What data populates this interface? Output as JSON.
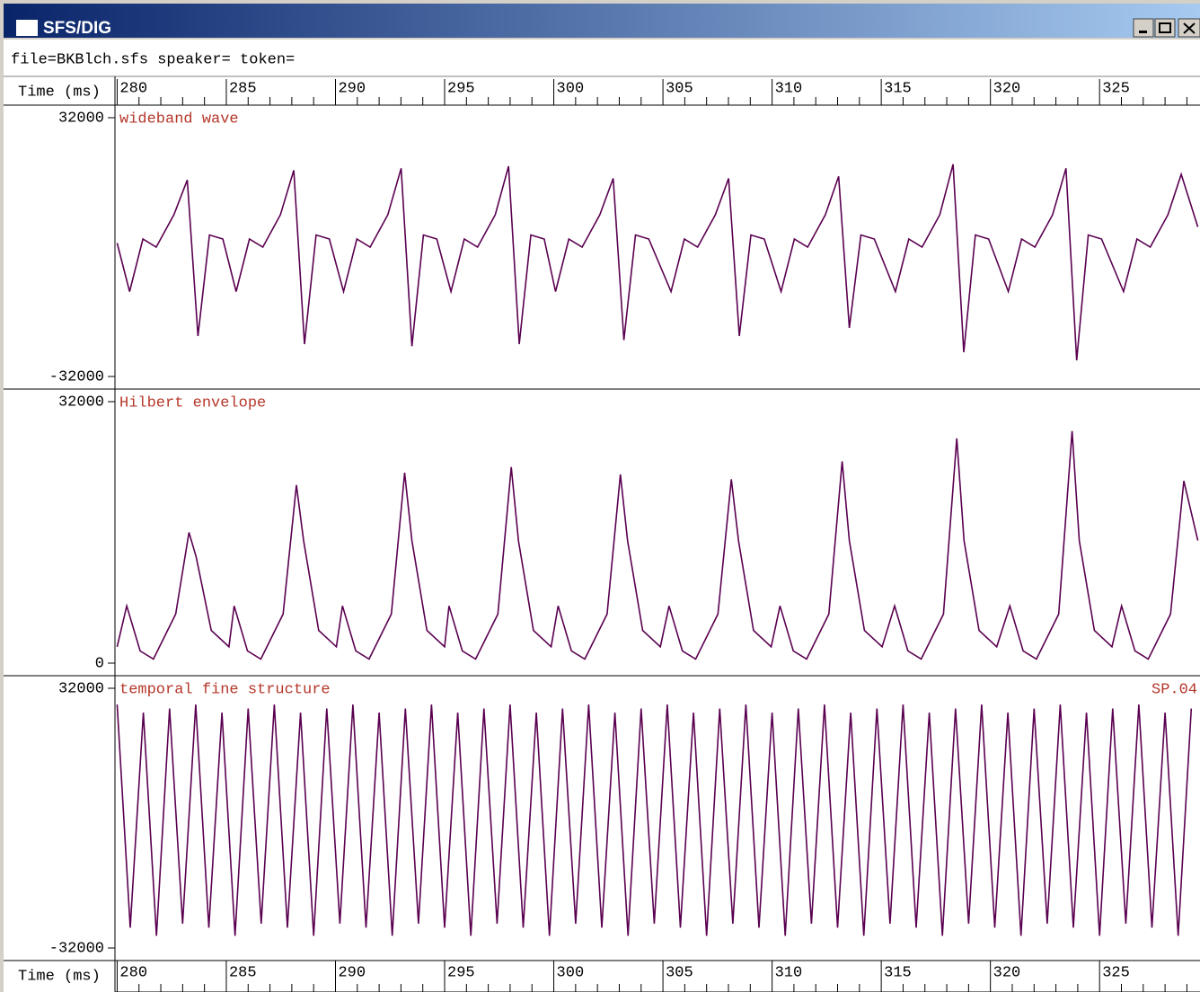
{
  "window": {
    "title": "SFS/DIG"
  },
  "info": "file=BKBlch.sfs speaker= token=",
  "time_axis": {
    "label": "Time (ms)",
    "xlim": [
      279.9,
      329.6
    ],
    "xticks": [
      280,
      285,
      290,
      295,
      300,
      305,
      310,
      315,
      320,
      325
    ],
    "xminor": [
      281,
      282,
      283,
      284,
      286,
      287,
      288,
      289,
      291,
      292,
      293,
      294,
      296,
      297,
      298,
      299,
      301,
      302,
      303,
      304,
      306,
      307,
      308,
      309,
      311,
      312,
      313,
      314,
      316,
      317,
      318,
      319,
      321,
      322,
      323,
      324,
      326,
      327,
      328,
      329
    ]
  },
  "chart_data": [
    {
      "type": "line",
      "title": "wideband wave",
      "color": "#5a0050",
      "ylim": [
        -32000,
        32000
      ],
      "yticks": [
        -32000,
        32000
      ],
      "x": [
        280,
        280.57,
        281.18,
        281.79,
        282.6,
        283.21,
        283.7,
        284.23,
        284.84,
        285.45,
        286.06,
        286.67,
        287.48,
        288.09,
        288.58,
        289.11,
        289.72,
        290.37,
        290.98,
        291.59,
        292.4,
        293.01,
        293.5,
        294.03,
        294.64,
        295.29,
        295.9,
        296.51,
        297.32,
        297.93,
        298.42,
        298.95,
        299.56,
        300.08,
        300.69,
        301.3,
        302.11,
        302.72,
        303.21,
        303.74,
        304.35,
        305.37,
        305.98,
        306.59,
        307.4,
        308.01,
        308.5,
        309.03,
        309.64,
        310.41,
        311.02,
        311.63,
        312.44,
        313.05,
        313.54,
        314.07,
        314.68,
        315.65,
        316.26,
        316.87,
        317.68,
        318.29,
        318.78,
        319.31,
        319.92,
        320.82,
        321.43,
        322.04,
        322.85,
        323.46,
        323.95,
        324.48,
        325.09,
        326.1,
        326.71,
        327.32,
        328.13,
        328.74,
        329.5
      ],
      "values": [
        1000,
        -11000,
        2000,
        0,
        8000,
        16600,
        -22000,
        3000,
        2000,
        -11000,
        2000,
        0,
        8000,
        19000,
        -24000,
        3000,
        2000,
        -11000,
        2000,
        0,
        8000,
        19500,
        -24500,
        3000,
        2000,
        -11000,
        2000,
        0,
        8000,
        20000,
        -24000,
        3000,
        2000,
        -11000,
        2000,
        0,
        8000,
        17000,
        -23000,
        3000,
        2000,
        -11000,
        2000,
        0,
        8000,
        17000,
        -22000,
        3000,
        2000,
        -11000,
        2000,
        0,
        8000,
        17500,
        -20000,
        3000,
        2000,
        -11000,
        2000,
        0,
        8000,
        20500,
        -26000,
        3000,
        2000,
        -11000,
        2000,
        0,
        8000,
        19500,
        -28000,
        3000,
        2000,
        -11000,
        2000,
        0,
        8000,
        18000,
        5000
      ]
    },
    {
      "type": "line",
      "title": "Hilbert envelope",
      "color": "#5a0050",
      "ylim": [
        0,
        32000
      ],
      "yticks": [
        0,
        32000
      ],
      "x": [
        280,
        280.44,
        281.05,
        281.66,
        282.68,
        283.29,
        283.62,
        284.31,
        285.12,
        285.36,
        285.97,
        286.58,
        287.6,
        288.21,
        288.54,
        289.23,
        290.04,
        290.32,
        290.93,
        291.54,
        292.56,
        293.17,
        293.5,
        294.19,
        295.0,
        295.2,
        295.81,
        296.42,
        297.44,
        298.05,
        298.38,
        299.07,
        299.88,
        300.2,
        300.81,
        301.42,
        302.44,
        303.05,
        303.38,
        304.07,
        304.88,
        305.28,
        305.89,
        306.5,
        307.52,
        308.13,
        308.46,
        309.15,
        309.96,
        310.36,
        310.97,
        311.58,
        312.6,
        313.21,
        313.54,
        314.23,
        315.04,
        315.61,
        316.22,
        316.83,
        317.85,
        318.46,
        318.79,
        319.48,
        320.29,
        320.89,
        321.5,
        322.11,
        323.13,
        323.74,
        324.07,
        324.76,
        325.57,
        326.01,
        326.62,
        327.23,
        328.25,
        328.86,
        329.5
      ],
      "values": [
        2000,
        7000,
        1500,
        500,
        6000,
        16000,
        13000,
        4000,
        2000,
        7000,
        1500,
        500,
        6000,
        21800,
        15000,
        4000,
        2000,
        7000,
        1500,
        500,
        6000,
        23300,
        15000,
        4000,
        2000,
        7000,
        1500,
        500,
        6000,
        24000,
        15000,
        4000,
        2000,
        7000,
        1500,
        500,
        6000,
        23100,
        15000,
        4000,
        2000,
        7000,
        1500,
        500,
        6000,
        22500,
        15000,
        4000,
        2000,
        7000,
        1500,
        500,
        6000,
        24700,
        15000,
        4000,
        2000,
        7000,
        1500,
        500,
        6000,
        27500,
        15000,
        4000,
        2000,
        7000,
        1500,
        500,
        6000,
        28400,
        15000,
        4000,
        2000,
        7000,
        1500,
        500,
        6000,
        22300,
        15000
      ]
    },
    {
      "type": "line",
      "title": "temporal fine structure",
      "annotation": "SP.04",
      "color": "#5a0050",
      "ylim": [
        -32000,
        32000
      ],
      "yticks": [
        -32000,
        32000
      ],
      "x": [
        280,
        280.6,
        281.2,
        281.8,
        282.4,
        283,
        283.6,
        284.2,
        284.8,
        285.4,
        286,
        286.6,
        287.2,
        287.8,
        288.4,
        289,
        289.6,
        290.2,
        290.8,
        291.4,
        292,
        292.6,
        293.2,
        293.8,
        294.4,
        295,
        295.6,
        296.2,
        296.8,
        297.4,
        298,
        298.6,
        299.2,
        299.8,
        300.4,
        301,
        301.6,
        302.2,
        302.8,
        303.4,
        304,
        304.6,
        305.2,
        305.8,
        306.4,
        307,
        307.6,
        308.2,
        308.8,
        309.4,
        310,
        310.6,
        311.2,
        311.8,
        312.4,
        313,
        313.6,
        314.2,
        314.8,
        315.4,
        316,
        316.6,
        317.2,
        317.8,
        318.4,
        319,
        319.6,
        320.2,
        320.8,
        321.4,
        322,
        322.6,
        323.2,
        323.8,
        324.4,
        325,
        325.6,
        326.2,
        326.8,
        327.4,
        328,
        328.6,
        329.2
      ],
      "values": [
        28000,
        -27000,
        26000,
        -29000,
        27000,
        -26000,
        28000,
        -27000,
        26000,
        -29000,
        27000,
        -26000,
        28000,
        -27000,
        26000,
        -29000,
        27000,
        -26000,
        28000,
        -27000,
        26000,
        -29000,
        27000,
        -26000,
        28000,
        -27000,
        26000,
        -29000,
        27000,
        -26000,
        28000,
        -27000,
        26000,
        -29000,
        27000,
        -26000,
        28000,
        -27000,
        26000,
        -29000,
        27000,
        -26000,
        28000,
        -27000,
        26000,
        -29000,
        27000,
        -26000,
        28000,
        -27000,
        26000,
        -29000,
        27000,
        -26000,
        28000,
        -27000,
        26000,
        -29000,
        27000,
        -26000,
        28000,
        -27000,
        26000,
        -29000,
        27000,
        -26000,
        28000,
        -27000,
        26000,
        -29000,
        27000,
        -26000,
        28000,
        -27000,
        26000,
        -29000,
        27000,
        -26000,
        28000,
        -27000,
        26000,
        -29000,
        27000
      ]
    }
  ]
}
